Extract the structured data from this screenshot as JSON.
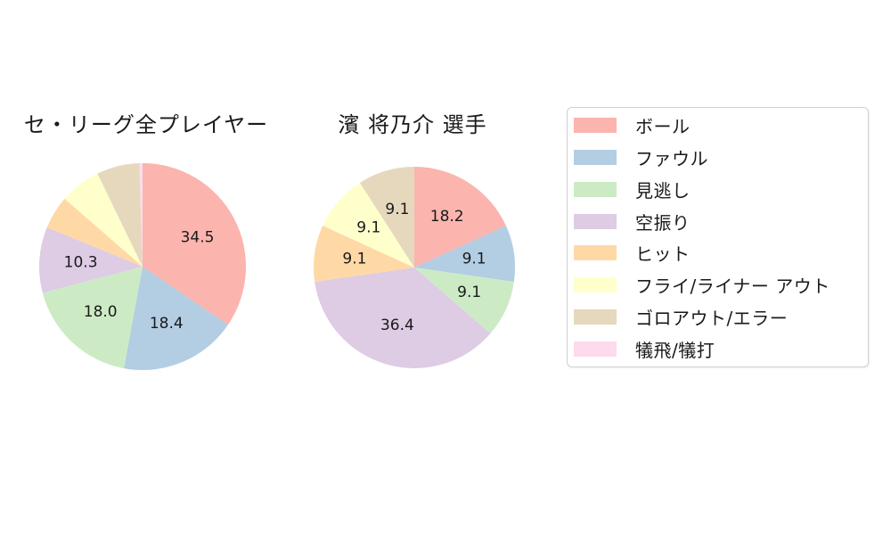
{
  "figure": {
    "background": "#ffffff",
    "text_color": "#1a1a1a"
  },
  "legend": {
    "position": "right",
    "items": [
      {
        "label": "ボール",
        "color": "#fbb4ae"
      },
      {
        "label": "ファウル",
        "color": "#b3cde3"
      },
      {
        "label": "見逃し",
        "color": "#ccebc5"
      },
      {
        "label": "空振り",
        "color": "#decbe4"
      },
      {
        "label": "ヒット",
        "color": "#fed9a6"
      },
      {
        "label": "フライ/ライナー アウト",
        "color": "#ffffcc"
      },
      {
        "label": "ゴロアウト/エラー",
        "color": "#e5d8bd"
      },
      {
        "label": "犠飛/犠打",
        "color": "#fddaec"
      }
    ]
  },
  "chart_data": [
    {
      "type": "pie",
      "title": "セ・リーグ全プレイヤー",
      "labels": [
        "ボール",
        "ファウル",
        "見逃し",
        "空振り",
        "ヒット",
        "フライ/ライナー アウト",
        "ゴロアウト/エラー",
        "犠飛/犠打"
      ],
      "values": [
        34.5,
        18.4,
        18.0,
        10.3,
        5.2,
        6.4,
        6.7,
        0.5
      ],
      "value_labels": [
        "34.5",
        "18.4",
        "18.0",
        "10.3",
        "",
        "",
        "",
        ""
      ],
      "colors": [
        "#fbb4ae",
        "#b3cde3",
        "#ccebc5",
        "#decbe4",
        "#fed9a6",
        "#ffffcc",
        "#e5d8bd",
        "#fddaec"
      ],
      "start_angle_deg": 90,
      "direction": "clockwise",
      "label_distance": 0.6
    },
    {
      "type": "pie",
      "title": "濱 将乃介 選手",
      "labels": [
        "ボール",
        "ファウル",
        "見逃し",
        "空振り",
        "ヒット",
        "フライ/ライナー アウト",
        "ゴロアウト/エラー",
        "犠飛/犠打"
      ],
      "values": [
        18.2,
        9.1,
        9.1,
        36.4,
        9.1,
        9.1,
        9.1,
        0
      ],
      "value_labels": [
        "18.2",
        "9.1",
        "9.1",
        "36.4",
        "9.1",
        "9.1",
        "9.1",
        ""
      ],
      "colors": [
        "#fbb4ae",
        "#b3cde3",
        "#ccebc5",
        "#decbe4",
        "#fed9a6",
        "#ffffcc",
        "#e5d8bd",
        "#fddaec"
      ],
      "start_angle_deg": 90,
      "direction": "clockwise",
      "label_distance": 0.6
    }
  ]
}
